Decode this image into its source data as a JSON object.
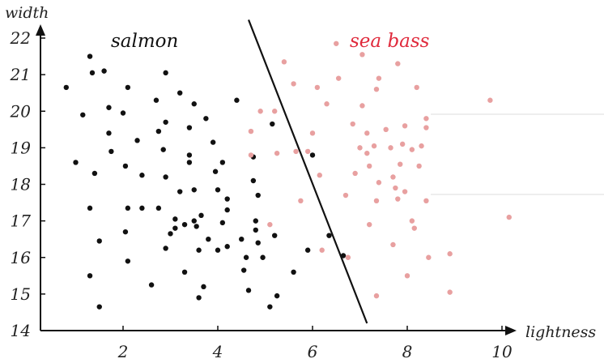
{
  "chart_data": {
    "type": "scatter",
    "xlabel": "lightness",
    "ylabel": "width",
    "xlim": [
      0.3,
      10.5
    ],
    "ylim": [
      14,
      22.3
    ],
    "x_ticks": [
      "2",
      "4",
      "6",
      "8",
      "10"
    ],
    "y_ticks": [
      "14",
      "15",
      "16",
      "17",
      "18",
      "19",
      "20",
      "21",
      "22"
    ],
    "grid": false,
    "annotations": {
      "salmon": "salmon",
      "sea_bass": "sea bass"
    },
    "decision_boundary": {
      "x": [
        4.65,
        7.15
      ],
      "y": [
        22.5,
        14.2
      ]
    },
    "series": [
      {
        "color": "#111111",
        "points": [
          [
            0.8,
            20.65
          ],
          [
            1.0,
            18.6
          ],
          [
            1.15,
            19.9
          ],
          [
            1.3,
            21.5
          ],
          [
            1.35,
            21.05
          ],
          [
            1.6,
            21.1
          ],
          [
            1.3,
            17.35
          ],
          [
            1.3,
            15.5
          ],
          [
            1.4,
            18.3
          ],
          [
            1.5,
            16.45
          ],
          [
            1.5,
            14.65
          ],
          [
            1.7,
            20.1
          ],
          [
            1.7,
            19.4
          ],
          [
            1.75,
            18.9
          ],
          [
            2.0,
            19.95
          ],
          [
            2.05,
            18.5
          ],
          [
            2.05,
            16.7
          ],
          [
            2.1,
            20.65
          ],
          [
            2.1,
            17.35
          ],
          [
            2.1,
            15.9
          ],
          [
            2.3,
            19.2
          ],
          [
            2.4,
            18.25
          ],
          [
            2.4,
            17.35
          ],
          [
            2.6,
            15.25
          ],
          [
            2.7,
            20.3
          ],
          [
            2.75,
            19.45
          ],
          [
            2.75,
            17.35
          ],
          [
            2.85,
            18.95
          ],
          [
            2.9,
            21.05
          ],
          [
            2.9,
            19.7
          ],
          [
            2.9,
            18.2
          ],
          [
            2.9,
            16.25
          ],
          [
            3.0,
            16.65
          ],
          [
            3.1,
            16.8
          ],
          [
            3.1,
            17.05
          ],
          [
            3.2,
            20.5
          ],
          [
            3.2,
            17.8
          ],
          [
            3.3,
            16.9
          ],
          [
            3.3,
            15.6
          ],
          [
            3.4,
            19.55
          ],
          [
            3.4,
            18.6
          ],
          [
            3.4,
            18.8
          ],
          [
            3.5,
            20.2
          ],
          [
            3.5,
            17.0
          ],
          [
            3.5,
            17.85
          ],
          [
            3.55,
            16.85
          ],
          [
            3.6,
            14.9
          ],
          [
            3.6,
            16.2
          ],
          [
            3.65,
            17.15
          ],
          [
            3.7,
            15.2
          ],
          [
            3.75,
            19.8
          ],
          [
            3.8,
            16.5
          ],
          [
            3.9,
            19.15
          ],
          [
            3.95,
            18.35
          ],
          [
            4.0,
            16.2
          ],
          [
            4.0,
            17.85
          ],
          [
            4.1,
            16.95
          ],
          [
            4.1,
            18.6
          ],
          [
            4.2,
            17.6
          ],
          [
            4.2,
            17.3
          ],
          [
            4.2,
            16.3
          ],
          [
            4.4,
            20.3
          ],
          [
            4.5,
            16.5
          ],
          [
            4.55,
            15.65
          ],
          [
            4.6,
            16.0
          ],
          [
            4.65,
            15.1
          ],
          [
            4.75,
            18.75
          ],
          [
            4.75,
            18.1
          ],
          [
            4.8,
            17.0
          ],
          [
            4.8,
            16.75
          ],
          [
            4.85,
            17.7
          ],
          [
            4.85,
            16.4
          ],
          [
            4.95,
            16.0
          ],
          [
            5.1,
            14.65
          ],
          [
            5.15,
            19.65
          ],
          [
            5.2,
            16.6
          ],
          [
            5.25,
            14.95
          ],
          [
            5.6,
            15.6
          ],
          [
            5.9,
            16.2
          ],
          [
            6.0,
            18.8
          ],
          [
            6.35,
            16.6
          ],
          [
            6.65,
            16.05
          ]
        ]
      },
      {
        "color": "#e8a0a0",
        "points": [
          [
            4.7,
            19.45
          ],
          [
            4.7,
            18.8
          ],
          [
            4.9,
            20.0
          ],
          [
            5.1,
            16.9
          ],
          [
            5.2,
            20.0
          ],
          [
            5.25,
            18.85
          ],
          [
            5.4,
            21.35
          ],
          [
            5.6,
            20.75
          ],
          [
            5.65,
            18.9
          ],
          [
            5.75,
            17.55
          ],
          [
            5.9,
            18.9
          ],
          [
            6.0,
            19.4
          ],
          [
            6.1,
            20.65
          ],
          [
            6.15,
            18.25
          ],
          [
            6.2,
            16.2
          ],
          [
            6.3,
            20.2
          ],
          [
            6.5,
            21.85
          ],
          [
            6.55,
            20.9
          ],
          [
            6.7,
            17.7
          ],
          [
            6.75,
            16.0
          ],
          [
            6.85,
            19.65
          ],
          [
            6.9,
            18.3
          ],
          [
            7.0,
            19.0
          ],
          [
            7.05,
            20.15
          ],
          [
            7.05,
            21.55
          ],
          [
            7.15,
            19.4
          ],
          [
            7.15,
            18.85
          ],
          [
            7.2,
            18.5
          ],
          [
            7.2,
            16.9
          ],
          [
            7.3,
            19.05
          ],
          [
            7.35,
            20.6
          ],
          [
            7.35,
            17.55
          ],
          [
            7.35,
            14.95
          ],
          [
            7.4,
            20.9
          ],
          [
            7.4,
            18.05
          ],
          [
            7.55,
            19.5
          ],
          [
            7.65,
            19.0
          ],
          [
            7.7,
            18.2
          ],
          [
            7.7,
            16.35
          ],
          [
            7.75,
            17.9
          ],
          [
            7.8,
            21.3
          ],
          [
            7.8,
            17.6
          ],
          [
            7.85,
            18.55
          ],
          [
            7.9,
            19.1
          ],
          [
            7.95,
            17.8
          ],
          [
            7.95,
            19.6
          ],
          [
            8.0,
            15.5
          ],
          [
            8.1,
            18.95
          ],
          [
            8.1,
            17.0
          ],
          [
            8.15,
            16.8
          ],
          [
            8.2,
            20.65
          ],
          [
            8.25,
            18.5
          ],
          [
            8.3,
            19.05
          ],
          [
            8.4,
            19.8
          ],
          [
            8.4,
            19.55
          ],
          [
            8.4,
            17.55
          ],
          [
            8.45,
            16.0
          ],
          [
            8.9,
            16.1
          ],
          [
            8.9,
            15.05
          ],
          [
            9.75,
            20.3
          ],
          [
            10.15,
            17.1
          ]
        ]
      }
    ]
  }
}
